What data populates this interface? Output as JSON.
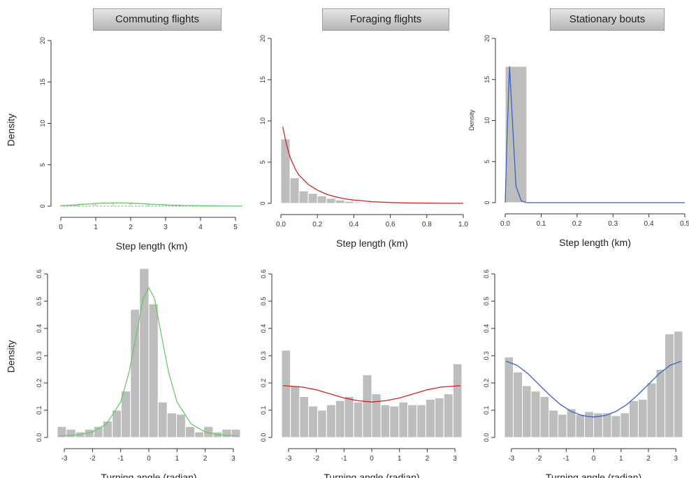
{
  "figure": {
    "column_titles": [
      "Commuting flights",
      "Foraging flights",
      "Stationary bouts"
    ],
    "row_labels": [
      "Density",
      "Density"
    ],
    "colors": {
      "bar": "#bdbdbd",
      "green": "#66cc66",
      "red": "#d62020",
      "blue": "#3a62c4",
      "axis": "#333333"
    }
  },
  "chart_data": [
    {
      "type": "histogram",
      "title": "Commuting flights",
      "xlabel": "Step length (km)",
      "ylabel": "Density",
      "xlim": [
        0,
        5.2
      ],
      "ylim": [
        0,
        20
      ],
      "xticks": [
        0,
        1,
        2,
        3,
        4,
        5
      ],
      "xtick_labels": [
        "0",
        "1",
        "2",
        "3",
        "4",
        "5"
      ],
      "yticks": [
        0,
        5,
        10,
        15,
        20
      ],
      "ytick_labels": [
        "0",
        "5",
        "10",
        "15",
        "20"
      ],
      "bin_edges": [
        0,
        0.5,
        1.0,
        1.5,
        2.0,
        2.5,
        3.0,
        3.5,
        4.0,
        4.5,
        5.0
      ],
      "values": [
        0.08,
        0.25,
        0.35,
        0.38,
        0.32,
        0.2,
        0.12,
        0.06,
        0.03,
        0.01
      ],
      "bar_style": "dashed-outline",
      "curve": {
        "color": "green",
        "x": [
          0,
          0.5,
          1.0,
          1.5,
          2.0,
          2.5,
          3.0,
          3.5,
          4.0,
          4.5,
          5.0,
          5.2
        ],
        "y": [
          0.05,
          0.18,
          0.32,
          0.4,
          0.36,
          0.25,
          0.15,
          0.08,
          0.04,
          0.02,
          0.01,
          0.01
        ]
      }
    },
    {
      "type": "histogram",
      "title": "Foraging flights",
      "xlabel": "Step length (km)",
      "ylabel": "Density",
      "xlim": [
        0,
        1.0
      ],
      "ylim": [
        0,
        20
      ],
      "xticks": [
        0,
        0.2,
        0.4,
        0.6,
        0.8,
        1.0
      ],
      "xtick_labels": [
        "0.0",
        "0.2",
        "0.4",
        "0.6",
        "0.8",
        "1.0"
      ],
      "yticks": [
        0,
        5,
        10,
        15,
        20
      ],
      "ytick_labels": [
        "0",
        "5",
        "10",
        "15",
        "20"
      ],
      "bin_edges": [
        0,
        0.05,
        0.1,
        0.15,
        0.2,
        0.25,
        0.3,
        0.35,
        0.4,
        0.45,
        0.5,
        0.55,
        0.6
      ],
      "values": [
        7.8,
        3.1,
        1.5,
        1.2,
        0.9,
        0.6,
        0.4,
        0.25,
        0.15,
        0.1,
        0.05,
        0.03
      ],
      "bar_style": "solid",
      "curve": {
        "color": "red",
        "x": [
          0.01,
          0.03,
          0.05,
          0.08,
          0.1,
          0.15,
          0.2,
          0.25,
          0.3,
          0.35,
          0.4,
          0.5,
          0.6,
          0.7,
          0.8,
          0.9,
          1.0
        ],
        "y": [
          9.3,
          7.2,
          5.6,
          4.1,
          3.4,
          2.3,
          1.6,
          1.1,
          0.8,
          0.55,
          0.4,
          0.2,
          0.1,
          0.05,
          0.03,
          0.01,
          0.0
        ]
      }
    },
    {
      "type": "histogram",
      "title": "Stationary bouts",
      "xlabel": "Step length (km)",
      "ylabel": "Density",
      "xlim": [
        0,
        0.5
      ],
      "ylim": [
        0,
        20
      ],
      "xticks": [
        0,
        0.1,
        0.2,
        0.3,
        0.4,
        0.5
      ],
      "xtick_labels": [
        "0.0",
        "0.1",
        "0.2",
        "0.3",
        "0.4",
        "0.5"
      ],
      "yticks": [
        0,
        5,
        10,
        15,
        20
      ],
      "ytick_labels": [
        "0",
        "5",
        "10",
        "15",
        "20"
      ],
      "bin_edges": [
        0,
        0.06
      ],
      "values": [
        16.6
      ],
      "bar_style": "solid",
      "curve": {
        "color": "blue",
        "x": [
          0.0,
          0.005,
          0.012,
          0.02,
          0.03,
          0.045,
          0.06,
          0.1,
          0.5
        ],
        "y": [
          0.0,
          8.0,
          16.6,
          10.0,
          2.0,
          0.2,
          0.0,
          0.0,
          0.0
        ]
      }
    },
    {
      "type": "histogram",
      "title": "",
      "xlabel": "Turning angle (radian)",
      "ylabel": "Density",
      "xlim": [
        -3.25,
        3.25
      ],
      "ylim": [
        0,
        0.6
      ],
      "xticks": [
        -3,
        -2,
        -1,
        0,
        1,
        2,
        3
      ],
      "xtick_labels": [
        "-3",
        "-2",
        "-1",
        "0",
        "1",
        "2",
        "3"
      ],
      "yticks": [
        0,
        0.1,
        0.2,
        0.3,
        0.4,
        0.5,
        0.6
      ],
      "ytick_labels": [
        "0.0",
        "0.1",
        "0.2",
        "0.3",
        "0.4",
        "0.5",
        "0.6"
      ],
      "bin_edges": [
        -3.25,
        -2.93,
        -2.6,
        -2.28,
        -1.95,
        -1.63,
        -1.3,
        -0.98,
        -0.65,
        -0.33,
        0,
        0.33,
        0.65,
        0.98,
        1.3,
        1.63,
        1.95,
        2.28,
        2.6,
        2.93,
        3.25
      ],
      "values": [
        0.04,
        0.03,
        0.02,
        0.03,
        0.04,
        0.06,
        0.1,
        0.17,
        0.47,
        0.62,
        0.49,
        0.13,
        0.09,
        0.085,
        0.04,
        0.02,
        0.04,
        0.02,
        0.03,
        0.03
      ],
      "bar_style": "solid",
      "curve": {
        "color": "green",
        "x": [
          -3.2,
          -2.5,
          -2.0,
          -1.5,
          -1.0,
          -0.7,
          -0.4,
          -0.2,
          0,
          0.2,
          0.4,
          0.7,
          1.0,
          1.5,
          2.0,
          2.5,
          3.2
        ],
        "y": [
          0.005,
          0.01,
          0.02,
          0.05,
          0.13,
          0.24,
          0.4,
          0.51,
          0.55,
          0.51,
          0.4,
          0.24,
          0.13,
          0.05,
          0.02,
          0.01,
          0.005
        ]
      }
    },
    {
      "type": "histogram",
      "title": "",
      "xlabel": "Turning angle (radian)",
      "ylabel": "Density",
      "xlim": [
        -3.25,
        3.25
      ],
      "ylim": [
        0,
        0.6
      ],
      "xticks": [
        -3,
        -2,
        -1,
        0,
        1,
        2,
        3
      ],
      "xtick_labels": [
        "-3",
        "-2",
        "-1",
        "0",
        "1",
        "2",
        "3"
      ],
      "yticks": [
        0,
        0.1,
        0.2,
        0.3,
        0.4,
        0.5,
        0.6
      ],
      "ytick_labels": [
        "0.0",
        "0.1",
        "0.2",
        "0.3",
        "0.4",
        "0.5",
        "0.6"
      ],
      "bin_edges": [
        -3.25,
        -2.93,
        -2.6,
        -2.28,
        -1.95,
        -1.63,
        -1.3,
        -0.98,
        -0.65,
        -0.33,
        0,
        0.33,
        0.65,
        0.98,
        1.3,
        1.63,
        1.95,
        2.28,
        2.6,
        2.93,
        3.25
      ],
      "values": [
        0.32,
        0.19,
        0.15,
        0.115,
        0.1,
        0.12,
        0.135,
        0.15,
        0.13,
        0.23,
        0.16,
        0.12,
        0.115,
        0.13,
        0.12,
        0.12,
        0.14,
        0.145,
        0.16,
        0.27
      ],
      "bar_style": "solid",
      "curve": {
        "color": "red",
        "x": [
          -3.2,
          -2.5,
          -2.0,
          -1.5,
          -1.0,
          -0.5,
          0,
          0.5,
          1.0,
          1.5,
          2.0,
          2.5,
          3.2
        ],
        "y": [
          0.19,
          0.185,
          0.175,
          0.16,
          0.145,
          0.135,
          0.13,
          0.135,
          0.145,
          0.16,
          0.175,
          0.185,
          0.19
        ]
      }
    },
    {
      "type": "histogram",
      "title": "",
      "xlabel": "Turning angle (radian)",
      "ylabel": "Density",
      "xlim": [
        -3.25,
        3.25
      ],
      "ylim": [
        0,
        0.6
      ],
      "xticks": [
        -3,
        -2,
        -1,
        0,
        1,
        2,
        3
      ],
      "xtick_labels": [
        "-3",
        "-2",
        "-1",
        "0",
        "1",
        "2",
        "3"
      ],
      "yticks": [
        0,
        0.1,
        0.2,
        0.3,
        0.4,
        0.5,
        0.6
      ],
      "ytick_labels": [
        "0.0",
        "0.1",
        "0.2",
        "0.3",
        "0.4",
        "0.5",
        "0.6"
      ],
      "bin_edges": [
        -3.25,
        -2.93,
        -2.6,
        -2.28,
        -1.95,
        -1.63,
        -1.3,
        -0.98,
        -0.65,
        -0.33,
        0,
        0.33,
        0.65,
        0.98,
        1.3,
        1.63,
        1.95,
        2.28,
        2.6,
        2.93,
        3.25
      ],
      "values": [
        0.295,
        0.24,
        0.19,
        0.17,
        0.15,
        0.1,
        0.085,
        0.105,
        0.085,
        0.095,
        0.09,
        0.09,
        0.08,
        0.09,
        0.135,
        0.14,
        0.2,
        0.25,
        0.38,
        0.39
      ],
      "bar_style": "solid",
      "curve": {
        "color": "blue",
        "x": [
          -3.2,
          -2.8,
          -2.4,
          -2.0,
          -1.6,
          -1.2,
          -0.8,
          -0.4,
          0,
          0.4,
          0.8,
          1.2,
          1.6,
          2.0,
          2.4,
          2.8,
          3.2
        ],
        "y": [
          0.28,
          0.265,
          0.235,
          0.195,
          0.155,
          0.12,
          0.095,
          0.08,
          0.075,
          0.08,
          0.095,
          0.12,
          0.155,
          0.195,
          0.235,
          0.265,
          0.28
        ]
      }
    }
  ]
}
